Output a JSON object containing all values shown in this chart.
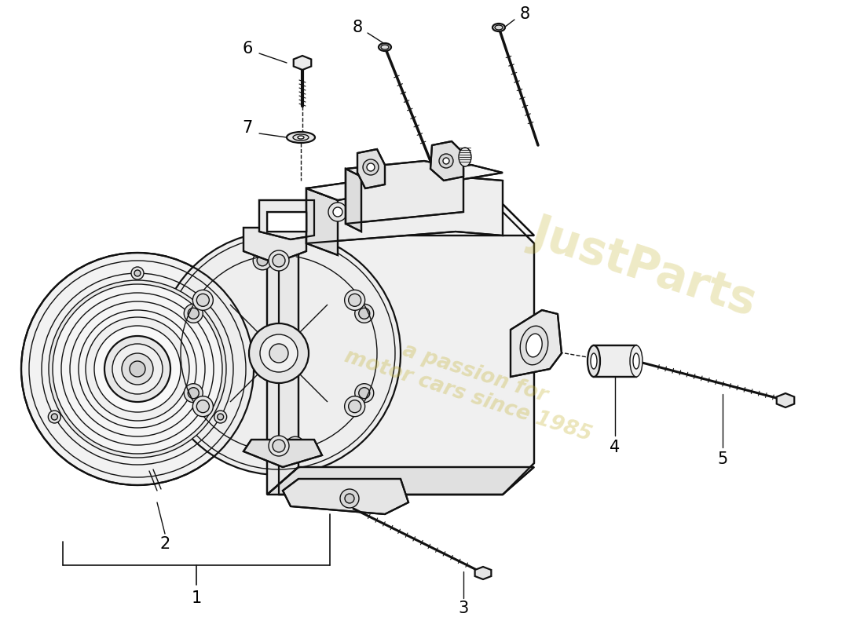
{
  "bg_color": "#ffffff",
  "line_color": "#111111",
  "lw_main": 1.6,
  "lw_thin": 1.0,
  "lw_leader": 1.0,
  "label_fontsize": 15,
  "watermark1": "a passion for\nmotor cars since 1985",
  "watermark2": "JustParts",
  "wm_color": "#c8b840",
  "wm_alpha": 0.35
}
